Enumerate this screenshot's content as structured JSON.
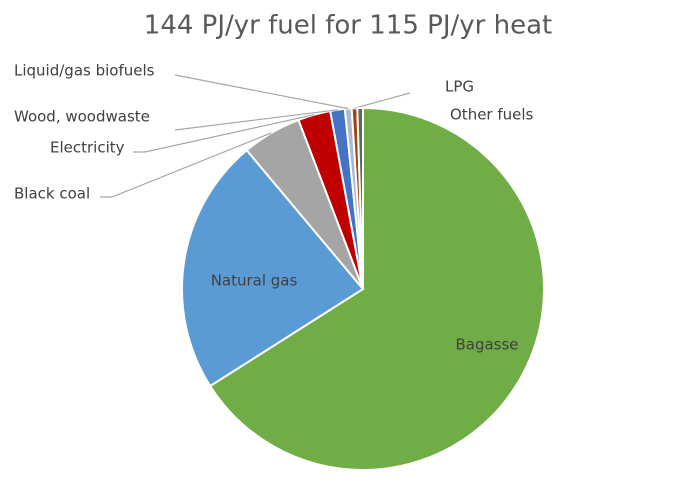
{
  "chart_data": {
    "type": "pie",
    "title": "144 PJ/yr fuel for 115 PJ/yr heat",
    "categories": [
      "Bagasse",
      "Natural gas",
      "Black coal",
      "Electricity",
      "Wood, woodwaste",
      "Liquid/gas biofuels",
      "LPG",
      "Other fuels"
    ],
    "values": [
      66,
      22.9,
      5.3,
      2.9,
      1.3,
      0.6,
      0.5,
      0.5
    ],
    "colors": [
      "#70ad47",
      "#5b9bd5",
      "#a5a5a5",
      "#c00000",
      "#4472c4",
      "#a9b9d0",
      "#9e480e",
      "#636363"
    ]
  }
}
